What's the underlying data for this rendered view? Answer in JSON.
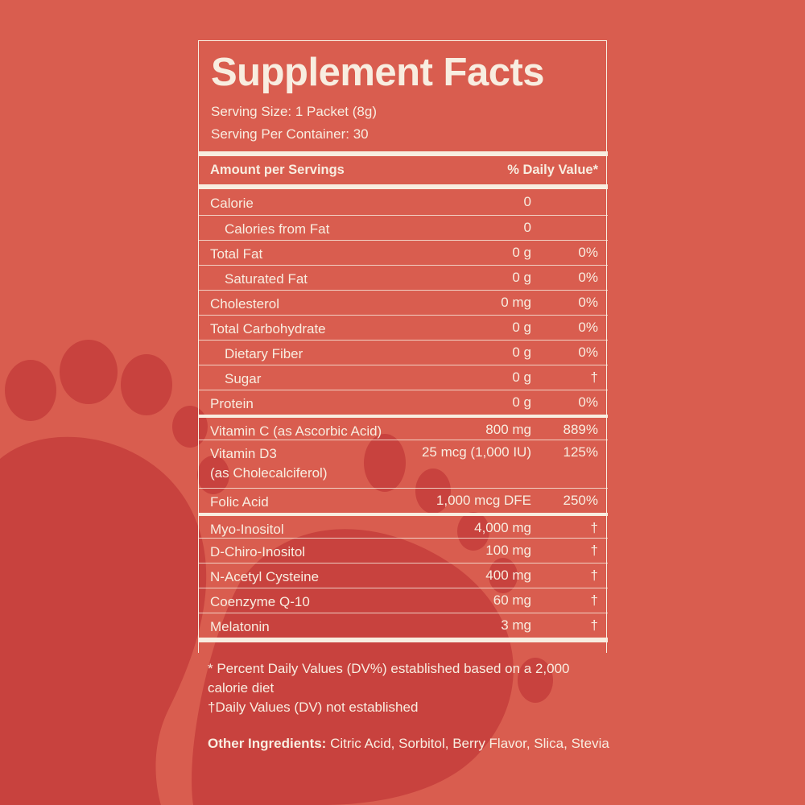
{
  "header": {
    "title": "Supplement Facts",
    "serving_size": "Serving Size: 1 Packet (8g)",
    "servings_per_container": "Serving Per Container: 30"
  },
  "table": {
    "header": [
      "Amount per Servings",
      "% Daily Value*"
    ],
    "sections": [
      [
        {
          "name": "Calorie",
          "amount": "0"
        },
        {
          "name": "Calories from Fat",
          "amount": "0",
          "indent": true
        },
        {
          "name": "Total Fat",
          "amount": "0 g",
          "dv": "0%"
        },
        {
          "name": "Saturated Fat",
          "amount": "0 g",
          "dv": "0%",
          "indent": true
        },
        {
          "name": "Cholesterol",
          "amount": "0 mg",
          "dv": "0%"
        },
        {
          "name": "Total Carbohydrate",
          "amount": "0 g",
          "dv": "0%"
        },
        {
          "name": "Dietary Fiber",
          "amount": "0 g",
          "dv": "0%",
          "indent": true
        },
        {
          "name": "Sugar",
          "amount": "0 g",
          "dv": "†",
          "indent": true
        },
        {
          "name": "Protein",
          "amount": "0 g",
          "dv": "0%"
        }
      ],
      [
        {
          "name": "Vitamin C (as Ascorbic Acid)",
          "amount": "800 mg",
          "dv": "889%"
        },
        {
          "name": [
            "Vitamin D3",
            "(as Cholecalciferol)"
          ],
          "amount": "25 mcg (1,000 IU)",
          "dv": "125%"
        },
        {
          "name": "Folic Acid",
          "amount": "1,000 mcg DFE",
          "dv": "250%"
        }
      ],
      [
        {
          "name": "Myo-Inositol",
          "amount": "4,000 mg",
          "dv": "†"
        },
        {
          "name": "D-Chiro-Inositol",
          "amount": "100 mg",
          "dv": "†"
        },
        {
          "name": "N-Acetyl Cysteine",
          "amount": "400 mg",
          "dv": "†"
        },
        {
          "name": "Coenzyme Q-10",
          "amount": "60 mg",
          "dv": "†"
        },
        {
          "name": "Melatonin",
          "amount": "3 mg",
          "dv": "†"
        }
      ]
    ]
  },
  "footnotes": [
    "* Percent Daily Values (DV%) established based on a 2,000 calorie diet",
    "†Daily Values (DV) not established"
  ],
  "other_ingredients": {
    "label": "Other  Ingredients:",
    "text": "Citric Acid, Sorbitol, Berry Flavor, Slica, Stevia"
  }
}
